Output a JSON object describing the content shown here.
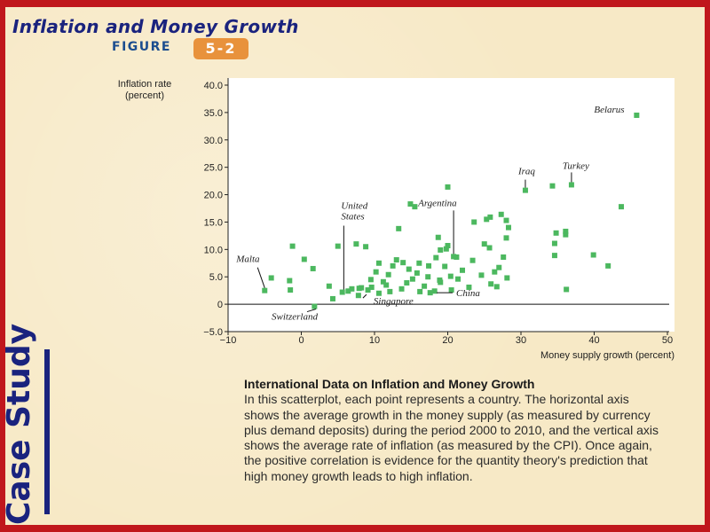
{
  "slide": {
    "title": "Inflation and Money Growth",
    "figure_label": "FIGURE",
    "figure_number": "5-2",
    "side_label": "Case Study",
    "caption_title": "International Data on Inflation and Money Growth",
    "caption_body": "In this scatterplot, each point represents a country. The horizontal axis shows the average growth in the money supply (as measured by currency plus demand deposits) during the period 2000 to 2010, and the vertical axis shows the average rate of inflation (as measured by the CPI). Once again, the positive correlation is evidence for the quantity theory's prediction that high money growth leads to high inflation."
  },
  "colors": {
    "frame": "#c0171c",
    "background": "#f7e9c6",
    "title": "#1a237e",
    "badge": "#e8923c",
    "point": "#4cb85f"
  },
  "chart_data": {
    "type": "scatter",
    "ylabel": "Inflation rate\n(percent)",
    "xlabel": "Money supply growth (percent)",
    "xlim": [
      -10,
      50
    ],
    "ylim": [
      -5,
      40
    ],
    "xticks": [
      "−10",
      "0",
      "10",
      "20",
      "30",
      "40",
      "50"
    ],
    "xtick_values": [
      -10,
      0,
      10,
      20,
      30,
      40,
      50
    ],
    "yticks": [
      "−5.0",
      "0",
      "5.0",
      "10.0",
      "15.0",
      "20.0",
      "25.0",
      "30.0",
      "35.0",
      "40.0"
    ],
    "ytick_values": [
      -5,
      0,
      5,
      10,
      15,
      20,
      25,
      30,
      35,
      40
    ],
    "grid": false,
    "points": [
      [
        45.8,
        34.5
      ],
      [
        36.9,
        21.8
      ],
      [
        34.3,
        21.6
      ],
      [
        30.6,
        20.8
      ],
      [
        20.0,
        21.4
      ],
      [
        43.7,
        17.8
      ],
      [
        14.9,
        18.3
      ],
      [
        15.5,
        17.8
      ],
      [
        27.3,
        16.4
      ],
      [
        25.8,
        15.9
      ],
      [
        25.3,
        15.5
      ],
      [
        28.0,
        15.3
      ],
      [
        23.6,
        15.0
      ],
      [
        28.3,
        14.0
      ],
      [
        34.8,
        13.0
      ],
      [
        36.1,
        13.3
      ],
      [
        36.1,
        12.7
      ],
      [
        28.0,
        12.1
      ],
      [
        18.7,
        12.2
      ],
      [
        13.3,
        13.8
      ],
      [
        -1.2,
        10.6
      ],
      [
        5.0,
        10.6
      ],
      [
        7.5,
        11.0
      ],
      [
        8.8,
        10.5
      ],
      [
        20.0,
        10.7
      ],
      [
        19.8,
        10.1
      ],
      [
        19.0,
        9.9
      ],
      [
        25.7,
        10.3
      ],
      [
        25.0,
        11.0
      ],
      [
        34.6,
        11.1
      ],
      [
        39.9,
        9.0
      ],
      [
        41.9,
        7.0
      ],
      [
        34.6,
        8.9
      ],
      [
        27.6,
        8.6
      ],
      [
        20.8,
        8.7
      ],
      [
        21.2,
        8.6
      ],
      [
        18.4,
        8.5
      ],
      [
        -4.1,
        4.8
      ],
      [
        -1.6,
        4.3
      ],
      [
        -5.0,
        2.5
      ],
      [
        -1.5,
        2.6
      ],
      [
        1.6,
        6.5
      ],
      [
        0.4,
        8.2
      ],
      [
        3.8,
        3.3
      ],
      [
        4.3,
        1.0
      ],
      [
        1.8,
        -0.4
      ],
      [
        6.4,
        2.4
      ],
      [
        5.6,
        2.2
      ],
      [
        6.9,
        2.8
      ],
      [
        7.8,
        1.6
      ],
      [
        8.2,
        3.0
      ],
      [
        9.1,
        2.6
      ],
      [
        9.5,
        4.5
      ],
      [
        10.2,
        5.9
      ],
      [
        10.6,
        7.5
      ],
      [
        11.2,
        4.1
      ],
      [
        11.9,
        5.4
      ],
      [
        12.5,
        7.0
      ],
      [
        13.0,
        8.1
      ],
      [
        13.9,
        7.6
      ],
      [
        14.7,
        6.4
      ],
      [
        15.2,
        4.6
      ],
      [
        15.8,
        5.7
      ],
      [
        16.1,
        7.5
      ],
      [
        16.8,
        3.3
      ],
      [
        17.3,
        5.0
      ],
      [
        17.6,
        2.1
      ],
      [
        18.2,
        2.4
      ],
      [
        19.0,
        4.0
      ],
      [
        19.6,
        6.9
      ],
      [
        20.5,
        2.6
      ],
      [
        21.4,
        4.6
      ],
      [
        22.0,
        6.2
      ],
      [
        23.4,
        8.0
      ],
      [
        24.6,
        5.3
      ],
      [
        25.9,
        3.7
      ],
      [
        26.4,
        5.9
      ],
      [
        27.0,
        6.7
      ],
      [
        28.1,
        4.8
      ],
      [
        12.1,
        2.3
      ],
      [
        10.6,
        2.0
      ],
      [
        9.6,
        3.1
      ],
      [
        7.9,
        2.9
      ],
      [
        11.6,
        3.5
      ],
      [
        13.7,
        2.8
      ],
      [
        14.4,
        3.9
      ],
      [
        16.2,
        2.3
      ],
      [
        17.4,
        7.0
      ],
      [
        18.9,
        4.4
      ],
      [
        26.7,
        3.2
      ],
      [
        36.2,
        2.7
      ],
      [
        22.9,
        3.1
      ],
      [
        20.4,
        5.1
      ]
    ],
    "annotations": [
      {
        "label": "Belarus",
        "point": [
          45.8,
          34.5
        ]
      },
      {
        "label": "Turkey",
        "point": [
          36.9,
          21.8
        ]
      },
      {
        "label": "Iraq",
        "point": [
          30.6,
          20.8
        ]
      },
      {
        "label": "Argentina",
        "point": [
          20.8,
          8.7
        ]
      },
      {
        "label": "United\nStates",
        "point": [
          5.8,
          2.2
        ]
      },
      {
        "label": "Malta",
        "point": [
          -5.0,
          2.5
        ]
      },
      {
        "label": "Switzerland",
        "point": [
          2.0,
          -0.4
        ]
      },
      {
        "label": "Singapore",
        "point": [
          8.9,
          2.1
        ]
      },
      {
        "label": "China",
        "point": [
          18.0,
          2.1
        ]
      }
    ]
  }
}
